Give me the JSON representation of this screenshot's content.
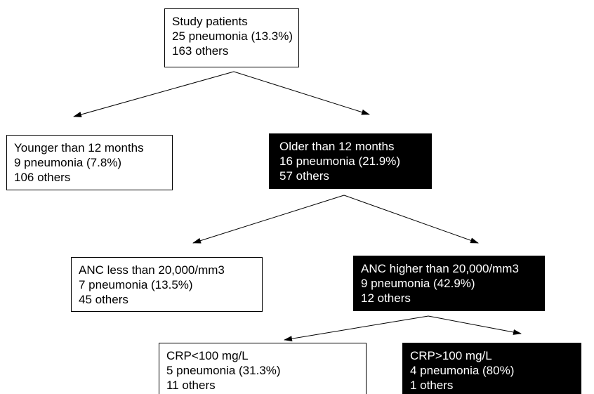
{
  "nodes": [
    {
      "lines": [
        "Study patients",
        "25 pneumonia (13.3%)",
        "163 others"
      ]
    },
    {
      "lines": [
        "Younger than 12 months",
        "9 pneumonia (7.8%)",
        "106 others"
      ]
    },
    {
      "lines": [
        "Older than 12 months",
        "16 pneumonia (21.9%)",
        "57 others"
      ]
    },
    {
      "lines": [
        "ANC less than 20,000/mm3",
        "7 pneumonia (13.5%)",
        "45 others"
      ]
    },
    {
      "lines": [
        "ANC higher than 20,000/mm3",
        "9 pneumonia (42.9%)",
        "12 others"
      ]
    },
    {
      "lines": [
        "CRP<100 mg/L",
        "5 pneumonia (31.3%)",
        "11 others"
      ]
    },
    {
      "lines": [
        "CRP>100 mg/L",
        "4 pneumonia (80%)",
        "1 others"
      ]
    }
  ]
}
